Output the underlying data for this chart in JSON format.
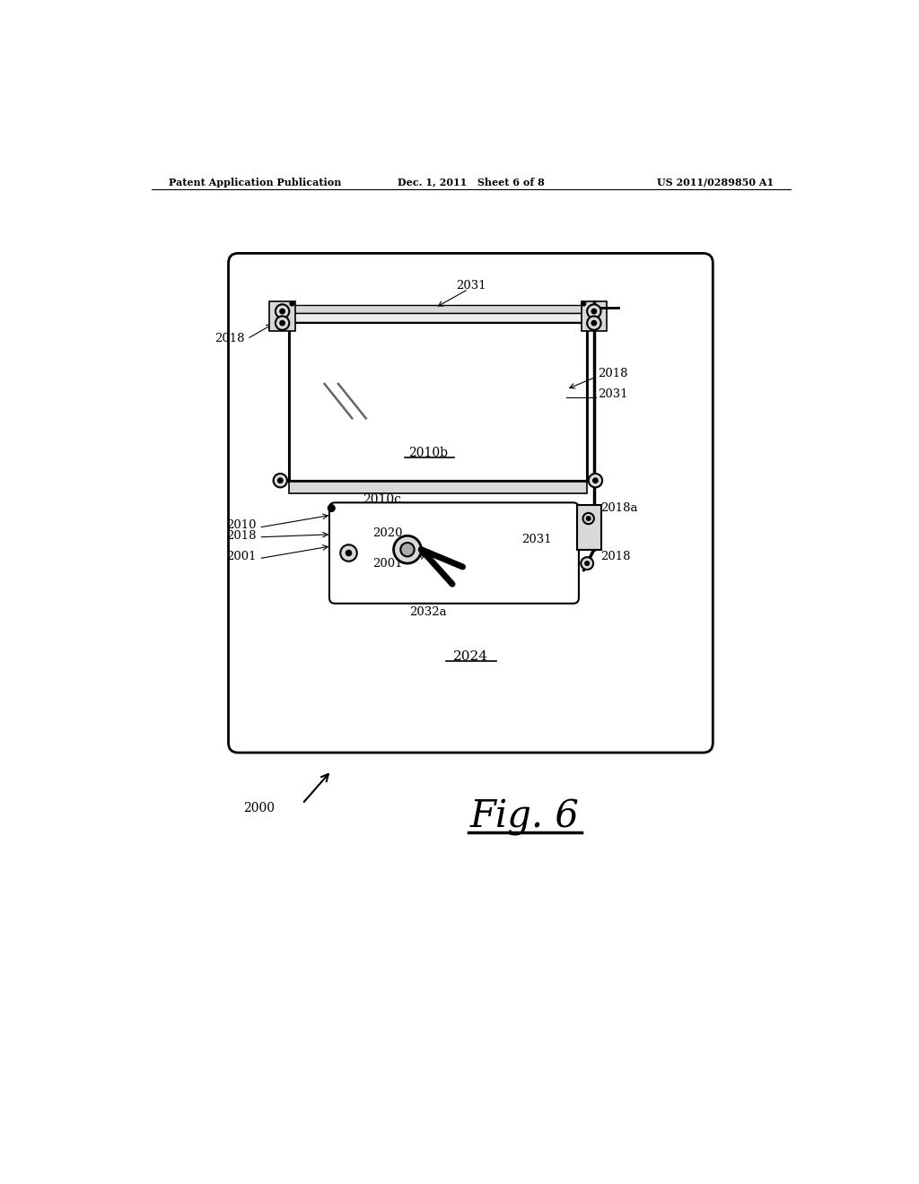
{
  "background_color": "#ffffff",
  "header_left": "Patent Application Publication",
  "header_center": "Dec. 1, 2011   Sheet 6 of 8",
  "header_right": "US 2011/0289850 A1",
  "fig_label": "Fig. 6",
  "colors": {
    "black": "#000000",
    "mid_gray": "#666666",
    "light_gray": "#bbbbbb",
    "white": "#ffffff",
    "panel_bg": "#ffffff",
    "bracket_fill": "#d8d8d8",
    "window_fill": "#f5f5f5"
  }
}
